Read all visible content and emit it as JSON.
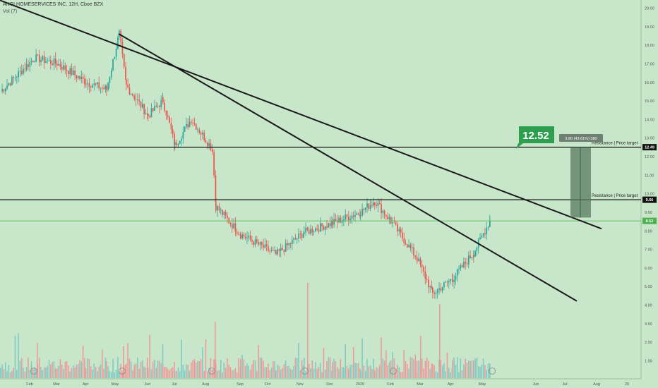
{
  "header": {
    "symbol_line": "ANGI HOMESERVICES INC, 12H, Cboe BZX",
    "volume_label": "Vol (7)"
  },
  "colors": {
    "background": "#c8e6c9",
    "up": "#26a69a",
    "down": "#ef5350",
    "trendline": "#1a1a1a",
    "current_price_line": "#4caf50",
    "price_target_callout": "#2e9e4f",
    "measure_box": "#5a7a60"
  },
  "chart_data": {
    "type": "candlestick",
    "x_ticks": [
      "Feb",
      "Mar",
      "Apr",
      "May",
      "Jun",
      "Jul",
      "Aug",
      "Sep",
      "Oct",
      "Nov",
      "Dec",
      "2020",
      "Feb",
      "Mar",
      "Apr",
      "May",
      "Jun",
      "Jul",
      "Aug",
      "20"
    ],
    "y_ticks": [
      "1.00",
      "2.00",
      "3.00",
      "4.00",
      "5.00",
      "6.00",
      "7.00",
      "8.00",
      "9.00",
      "10.00",
      "11.00",
      "12.00",
      "13.00",
      "14.00",
      "15.00",
      "16.00",
      "17.00",
      "18.00",
      "19.00",
      "20.00"
    ],
    "ylim": [
      0.5,
      20.3
    ],
    "axis_labels": {
      "resistance_high": "12.49",
      "resistance_low": "9.66",
      "last_price": "8.52"
    },
    "horizontal_levels": [
      {
        "value": 12.49,
        "label": "Resistance | Price target"
      },
      {
        "value": 9.66,
        "label": "Resistance | Price target"
      }
    ],
    "current_price": 8.52,
    "price_callout": "12.52",
    "measure_label": "3.80 (43.61%) 380",
    "price_path": [
      {
        "date": "Feb",
        "close": 15.5
      },
      {
        "date": "late Feb",
        "close": 17.3
      },
      {
        "date": "Mar",
        "close": 17.0
      },
      {
        "date": "Apr",
        "close": 16.0
      },
      {
        "date": "late Apr",
        "close": 15.6
      },
      {
        "date": "May",
        "close": 18.6
      },
      {
        "date": "mid May",
        "close": 15.8
      },
      {
        "date": "Jun",
        "close": 14.2
      },
      {
        "date": "late Jun",
        "close": 15.0
      },
      {
        "date": "Jul",
        "close": 12.6
      },
      {
        "date": "mid Jul",
        "close": 14.0
      },
      {
        "date": "Aug",
        "close": 12.4
      },
      {
        "date": "early Aug",
        "close": 9.3
      },
      {
        "date": "Sep",
        "close": 7.8
      },
      {
        "date": "Oct",
        "close": 6.7
      },
      {
        "date": "Nov",
        "close": 7.9
      },
      {
        "date": "Dec",
        "close": 8.4
      },
      {
        "date": "2020",
        "close": 9.0
      },
      {
        "date": "late Jan",
        "close": 9.6
      },
      {
        "date": "Feb",
        "close": 8.5
      },
      {
        "date": "Mar",
        "close": 6.5
      },
      {
        "date": "mid Mar",
        "close": 4.6
      },
      {
        "date": "Apr",
        "close": 5.4
      },
      {
        "date": "late Apr",
        "close": 6.8
      },
      {
        "date": "May",
        "close": 8.52
      }
    ]
  }
}
